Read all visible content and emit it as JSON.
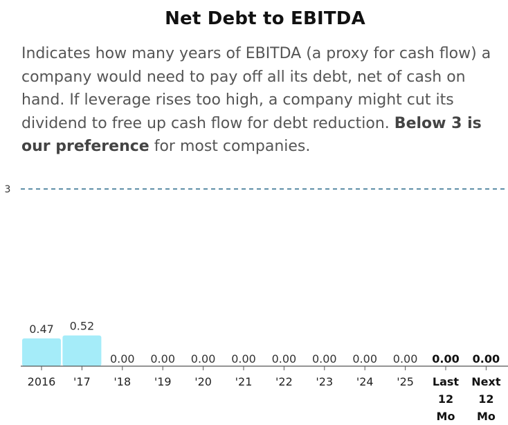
{
  "header": {
    "title": "Net Debt to EBITDA",
    "desc_part1": "Indicates how many years of EBITDA (a proxy for cash flow) a company would need to pay off all its debt, net of cash on hand. If leverage rises too high, a company might cut its dividend to free up cash flow for debt reduction. ",
    "desc_bold": "Below 3 is our preference",
    "desc_part2": " for most companies."
  },
  "colors": {
    "bar": "#a5ecf9",
    "reference_line": "#2a6a8a",
    "axis": "#555555"
  },
  "chart_data": {
    "type": "bar",
    "title": "Net Debt to EBITDA",
    "xlabel": "",
    "ylabel": "",
    "ylim": [
      0,
      3
    ],
    "reference_line": {
      "value": 3,
      "label": "3",
      "style": "dashed"
    },
    "categories": [
      [
        "2016"
      ],
      [
        "'17"
      ],
      [
        "'18"
      ],
      [
        "'19"
      ],
      [
        "'20"
      ],
      [
        "'21"
      ],
      [
        "'22"
      ],
      [
        "'23"
      ],
      [
        "'24"
      ],
      [
        "'25"
      ],
      [
        "Last",
        "12",
        "Mo"
      ],
      [
        "Next",
        "12",
        "Mo"
      ]
    ],
    "values": [
      0.47,
      0.52,
      0,
      0,
      0,
      0,
      0,
      0,
      0,
      0,
      0,
      0
    ],
    "value_labels": [
      "0.47",
      "0.52",
      "0.00",
      "0.00",
      "0.00",
      "0.00",
      "0.00",
      "0.00",
      "0.00",
      "0.00",
      "0.00",
      "0.00"
    ],
    "highlighted": [
      false,
      false,
      false,
      false,
      false,
      false,
      false,
      false,
      false,
      false,
      true,
      true
    ]
  }
}
